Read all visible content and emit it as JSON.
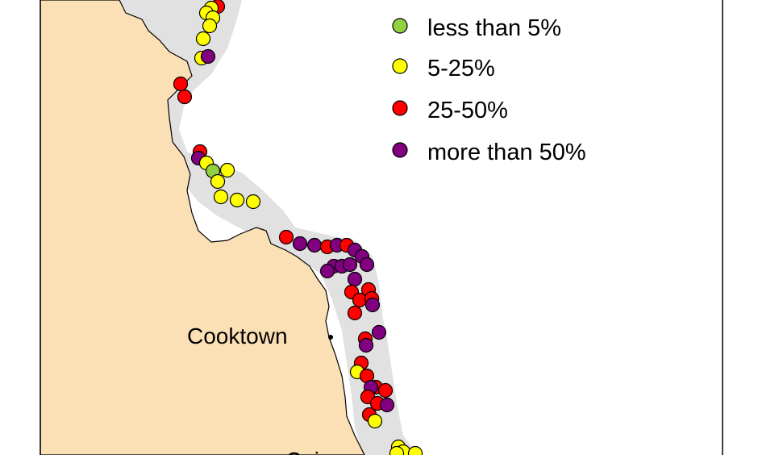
{
  "colors": {
    "land": "#fbe0b5",
    "sea": "#ffffff",
    "reef": "#e1e1e1",
    "outline": "#000000",
    "less_than_5": "#8fd13f",
    "five_to_25": "#ffff00",
    "twenty_five_to_50": "#ff0000",
    "more_than_50": "#800080"
  },
  "legend": [
    {
      "label": "less than 5%",
      "category": "less_than_5"
    },
    {
      "label": "5-25%",
      "category": "five_to_25"
    },
    {
      "label": "25-50%",
      "category": "twenty_five_to_50"
    },
    {
      "label": "more than 50%",
      "category": "more_than_50"
    }
  ],
  "places": [
    {
      "name": "Cooktown"
    },
    {
      "name": "Cairns"
    }
  ],
  "sites": [
    {
      "category": "twenty_five_to_50"
    },
    {
      "category": "five_to_25"
    },
    {
      "category": "five_to_25"
    },
    {
      "category": "five_to_25"
    },
    {
      "category": "five_to_25"
    },
    {
      "category": "five_to_25"
    },
    {
      "category": "five_to_25"
    },
    {
      "category": "more_than_50"
    },
    {
      "category": "twenty_five_to_50"
    },
    {
      "category": "twenty_five_to_50"
    },
    {
      "category": "twenty_five_to_50"
    },
    {
      "category": "more_than_50"
    },
    {
      "category": "five_to_25"
    },
    {
      "category": "less_than_5"
    },
    {
      "category": "five_to_25"
    },
    {
      "category": "five_to_25"
    },
    {
      "category": "five_to_25"
    },
    {
      "category": "five_to_25"
    },
    {
      "category": "five_to_25"
    },
    {
      "category": "twenty_five_to_50"
    },
    {
      "category": "more_than_50"
    },
    {
      "category": "more_than_50"
    },
    {
      "category": "twenty_five_to_50"
    },
    {
      "category": "more_than_50"
    },
    {
      "category": "twenty_five_to_50"
    },
    {
      "category": "more_than_50"
    },
    {
      "category": "more_than_50"
    },
    {
      "category": "more_than_50"
    },
    {
      "category": "more_than_50"
    },
    {
      "category": "more_than_50"
    },
    {
      "category": "more_than_50"
    },
    {
      "category": "more_than_50"
    },
    {
      "category": "more_than_50"
    },
    {
      "category": "twenty_five_to_50"
    },
    {
      "category": "twenty_five_to_50"
    },
    {
      "category": "twenty_five_to_50"
    },
    {
      "category": "twenty_five_to_50"
    },
    {
      "category": "more_than_50"
    },
    {
      "category": "twenty_five_to_50"
    },
    {
      "category": "twenty_five_to_50"
    },
    {
      "category": "more_than_50"
    },
    {
      "category": "more_than_50"
    },
    {
      "category": "twenty_five_to_50"
    },
    {
      "category": "five_to_25"
    },
    {
      "category": "twenty_five_to_50"
    },
    {
      "category": "twenty_five_to_50"
    },
    {
      "category": "more_than_50"
    },
    {
      "category": "twenty_five_to_50"
    },
    {
      "category": "twenty_five_to_50"
    },
    {
      "category": "twenty_five_to_50"
    },
    {
      "category": "more_than_50"
    },
    {
      "category": "twenty_five_to_50"
    },
    {
      "category": "five_to_25"
    },
    {
      "category": "five_to_25"
    },
    {
      "category": "five_to_25"
    },
    {
      "category": "five_to_25"
    },
    {
      "category": "five_to_25"
    }
  ]
}
